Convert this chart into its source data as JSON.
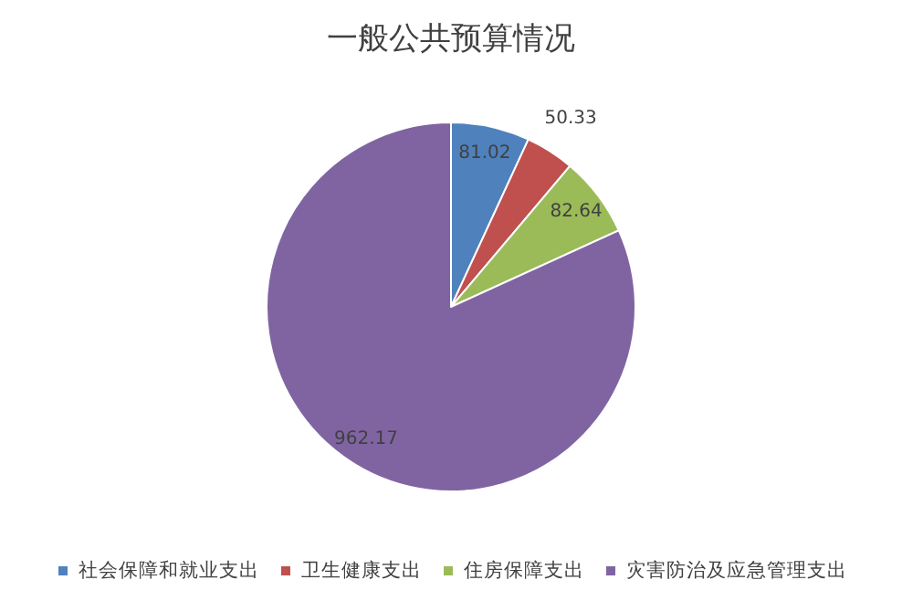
{
  "chart_data": {
    "type": "pie",
    "title": "一般公共预算情况",
    "categories": [
      "社会保障和就业支出",
      "卫生健康支出",
      "住房保障支出",
      "灾害防治及应急管理支出"
    ],
    "values": [
      81.02,
      50.33,
      82.64,
      962.17
    ],
    "colors": [
      "#4f81bd",
      "#c0504d",
      "#9bbb59",
      "#8064a2"
    ],
    "data_labels": true,
    "legend": "bottom"
  }
}
